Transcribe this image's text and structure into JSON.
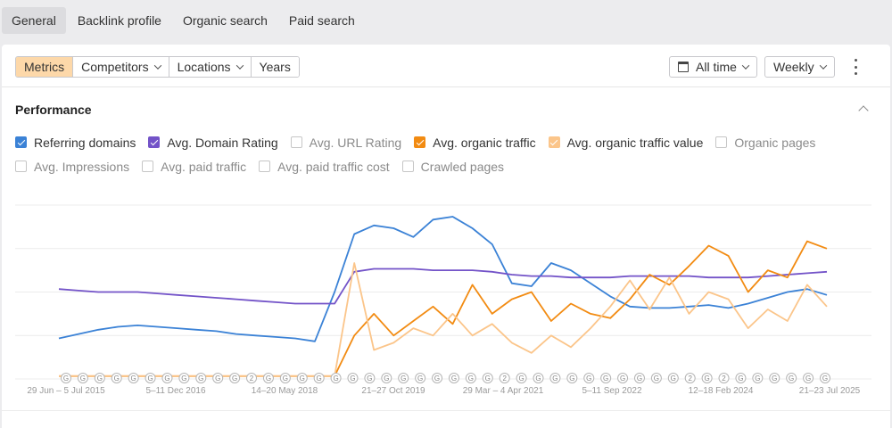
{
  "tabs": [
    {
      "label": "General",
      "active": true
    },
    {
      "label": "Backlink profile",
      "active": false
    },
    {
      "label": "Organic search",
      "active": false
    },
    {
      "label": "Paid search",
      "active": false
    }
  ],
  "toolbar": {
    "segments": [
      {
        "label": "Metrics",
        "active": true,
        "dropdown": false
      },
      {
        "label": "Competitors",
        "active": false,
        "dropdown": true
      },
      {
        "label": "Locations",
        "active": false,
        "dropdown": true
      },
      {
        "label": "Years",
        "active": false,
        "dropdown": false
      }
    ],
    "date_range": "All time",
    "interval": "Weekly"
  },
  "performance": {
    "title": "Performance",
    "metrics_row1": [
      {
        "label": "Referring domains",
        "checked": true,
        "color": "#3b82d6"
      },
      {
        "label": "Avg. Domain Rating",
        "checked": true,
        "color": "#7353c8"
      },
      {
        "label": "Avg. URL Rating",
        "checked": false,
        "color": ""
      },
      {
        "label": "Avg. organic traffic",
        "checked": true,
        "color": "#f28b12"
      },
      {
        "label": "Avg. organic traffic value",
        "checked": true,
        "color": "#fbc58a"
      },
      {
        "label": "Organic pages",
        "checked": false,
        "color": ""
      }
    ],
    "metrics_row2": [
      {
        "label": "Avg. Impressions",
        "checked": false,
        "color": ""
      },
      {
        "label": "Avg. paid traffic",
        "checked": false,
        "color": ""
      },
      {
        "label": "Avg. paid traffic cost",
        "checked": false,
        "color": ""
      },
      {
        "label": "Crawled pages",
        "checked": false,
        "color": ""
      }
    ]
  },
  "chart_data": {
    "type": "line",
    "x_tick_labels": [
      "29 Jun – 5 Jul 2015",
      "5–11 Dec 2016",
      "14–20 May 2018",
      "21–27 Oct 2019",
      "29 Mar – 4 Apr 2021",
      "5–11 Sep 2022",
      "12–18 Feb 2024",
      "21–23 Jul 2025"
    ],
    "grid": true,
    "y_axis_labels_visible": false,
    "series": [
      {
        "name": "Referring domains",
        "color": "#3b82d6",
        "values": [
          28,
          31,
          34,
          36,
          37,
          36,
          35,
          34,
          33,
          31,
          30,
          29,
          28,
          26,
          60,
          100,
          106,
          104,
          98,
          110,
          112,
          104,
          93,
          66,
          64,
          80,
          75,
          66,
          57,
          50,
          49,
          49,
          50,
          51,
          49,
          52,
          56,
          60,
          62,
          58
        ]
      },
      {
        "name": "Avg. Domain Rating",
        "color": "#7353c8",
        "values": [
          62,
          61,
          60,
          60,
          60,
          59,
          58,
          57,
          56,
          55,
          54,
          53,
          52,
          52,
          52,
          74,
          76,
          76,
          76,
          75,
          75,
          75,
          74,
          72,
          71,
          71,
          70,
          70,
          70,
          71,
          71,
          71,
          71,
          70,
          70,
          70,
          71,
          72,
          73,
          74
        ]
      },
      {
        "name": "Avg. organic traffic",
        "color": "#f28b12",
        "values": [
          2,
          2,
          2,
          2,
          2,
          2,
          2,
          2,
          2,
          2,
          2,
          2,
          2,
          2,
          2,
          30,
          45,
          30,
          40,
          50,
          38,
          65,
          45,
          55,
          60,
          40,
          52,
          45,
          42,
          55,
          72,
          65,
          78,
          92,
          85,
          60,
          75,
          70,
          95,
          90
        ]
      },
      {
        "name": "Avg. organic traffic value",
        "color": "#fbc58a",
        "values": [
          2,
          2,
          2,
          2,
          2,
          2,
          2,
          2,
          2,
          2,
          2,
          2,
          2,
          2,
          2,
          80,
          20,
          25,
          35,
          30,
          45,
          30,
          38,
          25,
          18,
          30,
          22,
          35,
          50,
          68,
          48,
          70,
          45,
          60,
          55,
          35,
          48,
          40,
          65,
          50
        ]
      }
    ],
    "annotation_markers": [
      "G",
      "G",
      "G",
      "G",
      "G",
      "G",
      "G",
      "G",
      "G",
      "G",
      "G",
      "2",
      "G",
      "G",
      "G",
      "G",
      "G",
      "G",
      "G",
      "G",
      "G",
      "G",
      "G",
      "G",
      "G",
      "G",
      "2",
      "G",
      "G",
      "G",
      "G",
      "G",
      "G",
      "G",
      "G",
      "G",
      "G",
      "2",
      "G",
      "2",
      "G",
      "G",
      "G",
      "G",
      "G",
      "G"
    ]
  }
}
